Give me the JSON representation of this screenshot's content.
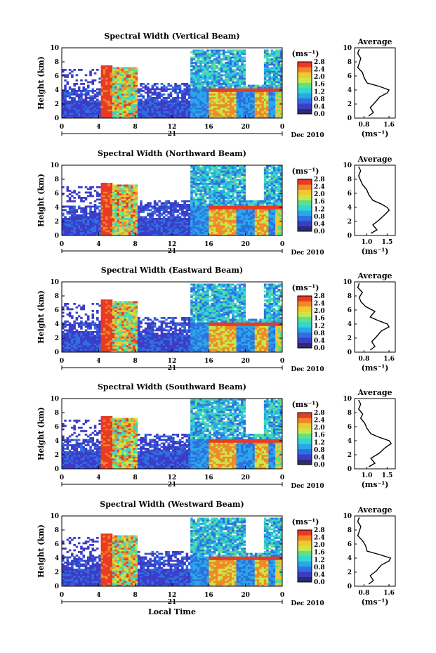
{
  "figure": {
    "date_label": "Dec 2010",
    "day_label": "21",
    "x_axis_label": "Local Time",
    "y_axis_label": "Height (km)",
    "colorbar_unit": "(ms⁻¹)",
    "avg_unit": "(ms⁻¹)",
    "avg_title": "Average"
  },
  "chart_data": [
    {
      "type": "heatmap",
      "title": "Spectral Width (Vertical Beam)",
      "xlabel": "",
      "ylabel": "Height (km)",
      "xlim": [
        0,
        24
      ],
      "ylim": [
        0,
        10
      ],
      "x_ticks": [
        "0",
        "4",
        "8",
        "12",
        "16",
        "20",
        "0"
      ],
      "y_ticks": [
        "0",
        "2",
        "4",
        "6",
        "8",
        "10"
      ],
      "colorbar": {
        "label": "(ms⁻¹)",
        "ticks": [
          "0.0",
          "0.4",
          "0.8",
          "1.2",
          "1.6",
          "2.0",
          "2.4",
          "2.8"
        ]
      },
      "average_profile": {
        "title": "Average",
        "xlabel": "(ms⁻¹)",
        "x_ticks": [
          "0.8",
          "1.6"
        ],
        "xlim": [
          0.5,
          1.8
        ],
        "y_ticks": [
          "0",
          "2",
          "4",
          "6",
          "8",
          "10"
        ],
        "heights": [
          0.3,
          0.8,
          1.5,
          2.2,
          3.0,
          3.6,
          4.0,
          4.5,
          5.0,
          5.8,
          6.5,
          7.2,
          7.8,
          8.5,
          9.2,
          9.8
        ],
        "values": [
          0.95,
          1.1,
          1.0,
          1.15,
          1.3,
          1.55,
          1.6,
          1.3,
          0.9,
          0.8,
          0.75,
          0.6,
          0.65,
          0.7,
          0.6,
          0.65
        ]
      }
    },
    {
      "type": "heatmap",
      "title": "Spectral Width (Northward Beam)",
      "xlabel": "",
      "ylabel": "Height (km)",
      "xlim": [
        0,
        24
      ],
      "ylim": [
        0,
        10
      ],
      "x_ticks": [
        "0",
        "4",
        "8",
        "12",
        "16",
        "20",
        "0"
      ],
      "y_ticks": [
        "0",
        "2",
        "4",
        "6",
        "8",
        "10"
      ],
      "colorbar": {
        "label": "(ms⁻¹)",
        "ticks": [
          "0.0",
          "0.4",
          "0.8",
          "1.2",
          "1.6",
          "2.0",
          "2.4",
          "2.8"
        ]
      },
      "average_profile": {
        "title": "Average",
        "xlabel": "(ms⁻¹)",
        "x_ticks": [
          "1.0",
          "1.5"
        ],
        "xlim": [
          0.7,
          1.7
        ],
        "y_ticks": [
          "0",
          "2",
          "4",
          "6",
          "8",
          "10"
        ],
        "heights": [
          0.3,
          0.8,
          1.5,
          2.2,
          3.0,
          3.6,
          4.0,
          4.5,
          5.0,
          5.8,
          6.5,
          7.2,
          7.8,
          8.5,
          9.2,
          9.8
        ],
        "values": [
          1.1,
          1.25,
          1.15,
          1.3,
          1.45,
          1.55,
          1.5,
          1.35,
          1.15,
          1.05,
          1.0,
          0.9,
          0.85,
          0.8,
          0.85,
          0.8
        ]
      }
    },
    {
      "type": "heatmap",
      "title": "Spectral Width (Eastward Beam)",
      "xlabel": "",
      "ylabel": "Height (km)",
      "xlim": [
        0,
        24
      ],
      "ylim": [
        0,
        10
      ],
      "x_ticks": [
        "0",
        "4",
        "8",
        "12",
        "16",
        "20",
        "0"
      ],
      "y_ticks": [
        "0",
        "2",
        "4",
        "6",
        "8",
        "10"
      ],
      "colorbar": {
        "label": "(ms⁻¹)",
        "ticks": [
          "0.0",
          "0.4",
          "0.8",
          "1.2",
          "1.6",
          "2.0",
          "2.4",
          "2.8"
        ]
      },
      "average_profile": {
        "title": "Average",
        "xlabel": "(ms⁻¹)",
        "x_ticks": [
          "0.8",
          "1.6"
        ],
        "xlim": [
          0.5,
          1.8
        ],
        "y_ticks": [
          "0",
          "2",
          "4",
          "6",
          "8",
          "10"
        ],
        "heights": [
          0.3,
          0.8,
          1.5,
          2.2,
          3.0,
          3.6,
          4.0,
          4.5,
          5.0,
          5.8,
          6.5,
          7.2,
          7.8,
          8.5,
          9.2,
          9.8
        ],
        "values": [
          1.0,
          1.15,
          1.05,
          1.2,
          1.35,
          1.6,
          1.55,
          1.25,
          1.0,
          1.15,
          0.85,
          0.7,
          0.65,
          0.75,
          0.6,
          0.65
        ]
      }
    },
    {
      "type": "heatmap",
      "title": "Spectral Width (Southward Beam)",
      "xlabel": "",
      "ylabel": "Height (km)",
      "xlim": [
        0,
        24
      ],
      "ylim": [
        0,
        10
      ],
      "x_ticks": [
        "0",
        "4",
        "8",
        "12",
        "16",
        "20",
        "0"
      ],
      "y_ticks": [
        "0",
        "2",
        "4",
        "6",
        "8",
        "10"
      ],
      "colorbar": {
        "label": "(ms⁻¹)",
        "ticks": [
          "0.0",
          "0.4",
          "0.8",
          "1.2",
          "1.6",
          "2.0",
          "2.4",
          "2.8"
        ]
      },
      "average_profile": {
        "title": "Average",
        "xlabel": "(ms⁻¹)",
        "x_ticks": [
          "1.0",
          "1.5"
        ],
        "xlim": [
          0.7,
          1.7
        ],
        "y_ticks": [
          "0",
          "2",
          "4",
          "6",
          "8",
          "10"
        ],
        "heights": [
          0.3,
          0.8,
          1.5,
          2.2,
          3.0,
          3.6,
          4.0,
          4.5,
          5.0,
          5.8,
          6.5,
          7.2,
          7.8,
          8.5,
          9.2,
          9.8
        ],
        "values": [
          1.05,
          1.2,
          1.1,
          1.3,
          1.45,
          1.6,
          1.55,
          1.3,
          1.1,
          1.0,
          0.95,
          0.85,
          0.9,
          0.8,
          0.85,
          0.8
        ]
      }
    },
    {
      "type": "heatmap",
      "title": "Spectral Width (Westward Beam)",
      "xlabel": "Local Time",
      "ylabel": "Height (km)",
      "xlim": [
        0,
        24
      ],
      "ylim": [
        0,
        10
      ],
      "x_ticks": [
        "0",
        "4",
        "8",
        "12",
        "16",
        "20",
        "0"
      ],
      "y_ticks": [
        "0",
        "2",
        "4",
        "6",
        "8",
        "10"
      ],
      "colorbar": {
        "label": "(ms⁻¹)",
        "ticks": [
          "0.0",
          "0.4",
          "0.8",
          "1.2",
          "1.6",
          "2.0",
          "2.4",
          "2.8"
        ]
      },
      "average_profile": {
        "title": "Average",
        "xlabel": "(ms⁻¹)",
        "x_ticks": [
          "0.8",
          "1.6"
        ],
        "xlim": [
          0.5,
          1.8
        ],
        "y_ticks": [
          "0",
          "2",
          "4",
          "6",
          "8",
          "10"
        ],
        "heights": [
          0.3,
          0.8,
          1.5,
          2.2,
          3.0,
          3.6,
          4.0,
          4.5,
          5.0,
          5.8,
          6.5,
          7.2,
          7.8,
          8.5,
          9.2,
          9.8
        ],
        "values": [
          0.95,
          1.1,
          1.0,
          1.2,
          1.35,
          1.6,
          1.65,
          1.3,
          0.9,
          0.85,
          0.75,
          0.6,
          0.65,
          0.7,
          0.6,
          0.65
        ]
      }
    }
  ],
  "palette": [
    "#2b2b6e",
    "#3c3cc8",
    "#2f6fe0",
    "#29a8e8",
    "#34d6d0",
    "#5fe08a",
    "#c8e84a",
    "#f0c830",
    "#f08a28",
    "#e83a24"
  ]
}
